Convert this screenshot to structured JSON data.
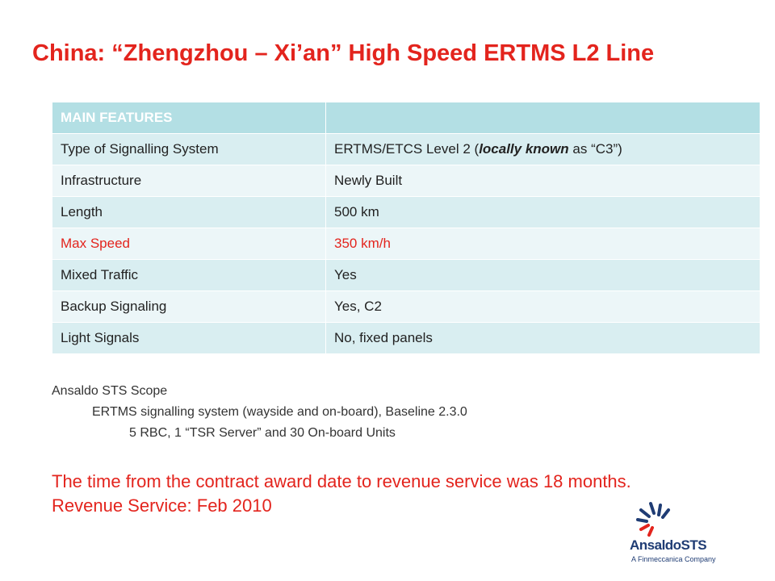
{
  "title": "China: “Zhengzhou – Xi’an” High Speed ERTMS L2 Line",
  "features": {
    "header": "MAIN FEATURES",
    "rows": [
      {
        "label": "Type of Signalling System",
        "value_pre": "ERTMS/ETCS Level 2 (",
        "value_em": "locally known",
        "value_post": " as “C3”)"
      },
      {
        "label": "Infrastructure",
        "value": "Newly Built"
      },
      {
        "label": "Length",
        "value": "500 km"
      },
      {
        "label": "Max Speed",
        "value": "350 km/h",
        "highlight_color": "#e3241d"
      },
      {
        "label": "Mixed Traffic",
        "value": "Yes"
      },
      {
        "label": "Backup Signaling",
        "value": "Yes, C2"
      },
      {
        "label": "Light Signals",
        "value": "No, fixed panels"
      }
    ]
  },
  "scope": {
    "heading": "Ansaldo STS Scope",
    "line1": "ERTMS signalling system (wayside and on-board), Baseline 2.3.0",
    "line2": "5 RBC, 1 “TSR Server” and 30 On-board Units"
  },
  "summary": {
    "line1": "The time from the contract award date to revenue service was 18 months.",
    "line2": "Revenue Service: Feb 2010"
  },
  "logo": {
    "name": "AnsaldoSTS",
    "tagline": "A Finmeccanica Company"
  },
  "colors": {
    "accent_red": "#e3241d",
    "table_header": "#b3dfe4",
    "row_dark": "#d9eef1",
    "row_light": "#ecf6f8",
    "logo_blue": "#1f3c74"
  }
}
